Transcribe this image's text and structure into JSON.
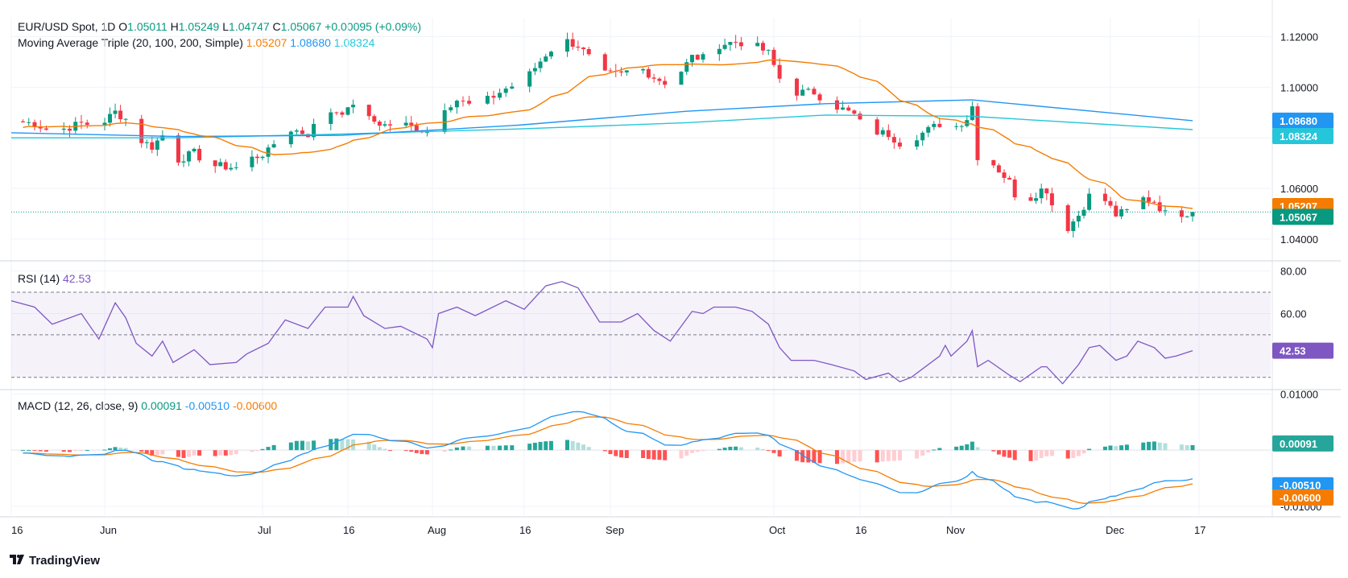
{
  "header": {
    "symbol": "EUR/USD Spot, 1D",
    "ohlc": [
      {
        "k": "O",
        "v": "1.05011"
      },
      {
        "k": "H",
        "v": "1.05249"
      },
      {
        "k": "L",
        "v": "1.04747"
      },
      {
        "k": "C",
        "v": "1.05067"
      }
    ],
    "change": "+0.00095 (+0.09%)",
    "ma_label": "Moving Average Triple (20, 100, 200, Simple)",
    "ma_values": [
      "1.05207",
      "1.08680",
      "1.08324"
    ]
  },
  "rsi": {
    "label": "RSI (14)",
    "value": "42.53"
  },
  "macd": {
    "label": "MACD (12, 26, close, 9)",
    "values": [
      "0.00091",
      "-0.00510",
      "-0.00600"
    ]
  },
  "logo": {
    "text": "TradingView"
  },
  "colors": {
    "up": "#089981",
    "down": "#f23645",
    "ma20": "#f57c00",
    "ma100": "#2196f3",
    "ma200": "#26c6da",
    "rsi": "#7e57c2",
    "macd": "#2196f3",
    "signal": "#f57c00",
    "hist_up_strong": "#26a69a",
    "hist_up_weak": "#b2dfdb",
    "hist_dn_strong": "#ff5252",
    "hist_dn_weak": "#ffcdd2",
    "close_label": "#089981"
  },
  "chart_data": [
    {
      "type": "candlestick",
      "title": "EUR/USD Spot, 1D",
      "x_ticks": [
        "16",
        "Jun",
        "Jul",
        "16",
        "Aug",
        "16",
        "Sep",
        "Oct",
        "16",
        "Nov",
        "Dec",
        "17"
      ],
      "y_ticks": [
        "1.04000",
        "1.06000",
        "1.08000",
        "1.10000",
        "1.12000"
      ],
      "ylim": [
        1.032,
        1.1275
      ],
      "close_points": [
        [
          "05-16",
          1.0865
        ],
        [
          "05-20",
          1.0858
        ],
        [
          "05-23",
          1.0822
        ],
        [
          "05-28",
          1.0857
        ],
        [
          "05-31",
          1.085
        ],
        [
          "06-03",
          1.0902
        ],
        [
          "06-05",
          1.0875
        ],
        [
          "06-07",
          1.08
        ],
        [
          "06-10",
          1.0765
        ],
        [
          "06-12",
          1.081
        ],
        [
          "06-14",
          1.0705
        ],
        [
          "06-18",
          1.074
        ],
        [
          "06-21",
          1.0692
        ],
        [
          "06-26",
          1.0682
        ],
        [
          "06-28",
          1.0711
        ],
        [
          "07-02",
          1.0745
        ],
        [
          "07-05",
          1.084
        ],
        [
          "07-09",
          1.0815
        ],
        [
          "07-12",
          1.0906
        ],
        [
          "07-16",
          1.0906
        ],
        [
          "07-17",
          1.094
        ],
        [
          "07-19",
          1.088
        ],
        [
          "07-23",
          1.085
        ],
        [
          "07-26",
          1.0857
        ],
        [
          "07-31",
          1.0825
        ],
        [
          "08-01",
          1.079
        ],
        [
          "08-02",
          1.091
        ],
        [
          "08-05",
          1.095
        ],
        [
          "08-08",
          1.092
        ],
        [
          "08-13",
          1.0995
        ],
        [
          "08-16",
          1.1025
        ],
        [
          "08-20",
          1.113
        ],
        [
          "08-23",
          1.119
        ],
        [
          "08-26",
          1.1165
        ],
        [
          "08-28",
          1.1118
        ],
        [
          "08-30",
          1.105
        ],
        [
          "09-03",
          1.105
        ],
        [
          "09-06",
          1.1085
        ],
        [
          "09-09",
          1.104
        ],
        [
          "09-12",
          1.101
        ],
        [
          "09-16",
          1.112
        ],
        [
          "09-18",
          1.1115
        ],
        [
          "09-20",
          1.1165
        ],
        [
          "09-24",
          1.118
        ],
        [
          "09-27",
          1.117
        ],
        [
          "09-30",
          1.1135
        ],
        [
          "10-02",
          1.1035
        ],
        [
          "10-04",
          1.098
        ],
        [
          "10-08",
          1.098
        ],
        [
          "10-11",
          1.0935
        ],
        [
          "10-15",
          1.089
        ],
        [
          "10-17",
          1.083
        ],
        [
          "10-21",
          1.0815
        ],
        [
          "10-23",
          1.078
        ],
        [
          "10-25",
          1.0795
        ],
        [
          "10-30",
          1.0855
        ],
        [
          "10-31",
          1.0885
        ],
        [
          "11-01",
          1.083
        ],
        [
          "11-04",
          1.0878
        ],
        [
          "11-05",
          1.0925
        ],
        [
          "11-06",
          1.0727
        ],
        [
          "11-08",
          1.072
        ],
        [
          "11-12",
          1.0625
        ],
        [
          "11-14",
          1.053
        ],
        [
          "11-18",
          1.0595
        ],
        [
          "11-19",
          1.0595
        ],
        [
          "11-22",
          1.042
        ],
        [
          "11-25",
          1.0495
        ],
        [
          "11-27",
          1.057
        ],
        [
          "11-29",
          1.058
        ],
        [
          "12-02",
          1.0495
        ],
        [
          "12-04",
          1.051
        ],
        [
          "12-06",
          1.0565
        ],
        [
          "12-09",
          1.055
        ],
        [
          "12-11",
          1.05
        ],
        [
          "12-13",
          1.05
        ],
        [
          "12-16",
          1.0507
        ]
      ],
      "series": [
        {
          "name": "MA 20",
          "last": 1.05207
        },
        {
          "name": "MA 100",
          "last": 1.0868
        },
        {
          "name": "MA 200",
          "last": 1.08324
        }
      ],
      "last_close": 1.05067
    },
    {
      "type": "line",
      "title": "RSI (14)",
      "y_ticks": [
        "60.00",
        "80.00"
      ],
      "ylim": [
        25,
        84
      ],
      "bands": [
        30,
        50,
        70
      ],
      "points": [
        [
          "05-16",
          66
        ],
        [
          "05-20",
          63
        ],
        [
          "05-23",
          55
        ],
        [
          "05-28",
          60
        ],
        [
          "05-31",
          48
        ],
        [
          "06-03",
          65
        ],
        [
          "06-05",
          58
        ],
        [
          "06-07",
          46
        ],
        [
          "06-10",
          40
        ],
        [
          "06-12",
          47
        ],
        [
          "06-14",
          37
        ],
        [
          "06-18",
          43
        ],
        [
          "06-21",
          36
        ],
        [
          "06-26",
          37
        ],
        [
          "06-28",
          41
        ],
        [
          "07-02",
          46
        ],
        [
          "07-05",
          57
        ],
        [
          "07-09",
          53
        ],
        [
          "07-12",
          63
        ],
        [
          "07-16",
          63
        ],
        [
          "07-17",
          68
        ],
        [
          "07-19",
          59
        ],
        [
          "07-23",
          53
        ],
        [
          "07-26",
          54
        ],
        [
          "07-31",
          48
        ],
        [
          "08-01",
          44
        ],
        [
          "08-02",
          60
        ],
        [
          "08-05",
          63
        ],
        [
          "08-08",
          59
        ],
        [
          "08-13",
          66
        ],
        [
          "08-16",
          62
        ],
        [
          "08-20",
          73
        ],
        [
          "08-23",
          75
        ],
        [
          "08-26",
          72
        ],
        [
          "08-28",
          64
        ],
        [
          "08-30",
          56
        ],
        [
          "09-03",
          56
        ],
        [
          "09-06",
          60
        ],
        [
          "09-09",
          52
        ],
        [
          "09-12",
          47
        ],
        [
          "09-16",
          61
        ],
        [
          "09-18",
          60
        ],
        [
          "09-20",
          63
        ],
        [
          "09-24",
          63
        ],
        [
          "09-27",
          61
        ],
        [
          "09-30",
          55
        ],
        [
          "10-02",
          44
        ],
        [
          "10-04",
          38
        ],
        [
          "10-08",
          38
        ],
        [
          "10-11",
          36
        ],
        [
          "10-15",
          33
        ],
        [
          "10-17",
          29
        ],
        [
          "10-21",
          32
        ],
        [
          "10-23",
          28
        ],
        [
          "10-25",
          30
        ],
        [
          "10-30",
          40
        ],
        [
          "10-31",
          45
        ],
        [
          "11-01",
          40
        ],
        [
          "11-04",
          47
        ],
        [
          "11-05",
          52
        ],
        [
          "11-06",
          35
        ],
        [
          "11-08",
          38
        ],
        [
          "11-12",
          31
        ],
        [
          "11-14",
          28
        ],
        [
          "11-18",
          35
        ],
        [
          "11-19",
          35
        ],
        [
          "11-22",
          27
        ],
        [
          "11-25",
          36
        ],
        [
          "11-27",
          44
        ],
        [
          "11-29",
          45
        ],
        [
          "12-02",
          38
        ],
        [
          "12-04",
          40
        ],
        [
          "12-06",
          47
        ],
        [
          "12-09",
          44
        ],
        [
          "12-11",
          39
        ],
        [
          "12-13",
          40
        ],
        [
          "12-16",
          42.53
        ]
      ]
    },
    {
      "type": "line",
      "title": "MACD (12, 26, close, 9)",
      "y_ticks": [
        "-0.01000",
        "0.01000"
      ],
      "ylim": [
        -0.0116,
        0.0105
      ],
      "series": [
        {
          "name": "MACD",
          "last": -0.0051
        },
        {
          "name": "Signal",
          "last": -0.006
        },
        {
          "name": "Histogram",
          "last": 0.00091
        }
      ]
    }
  ]
}
